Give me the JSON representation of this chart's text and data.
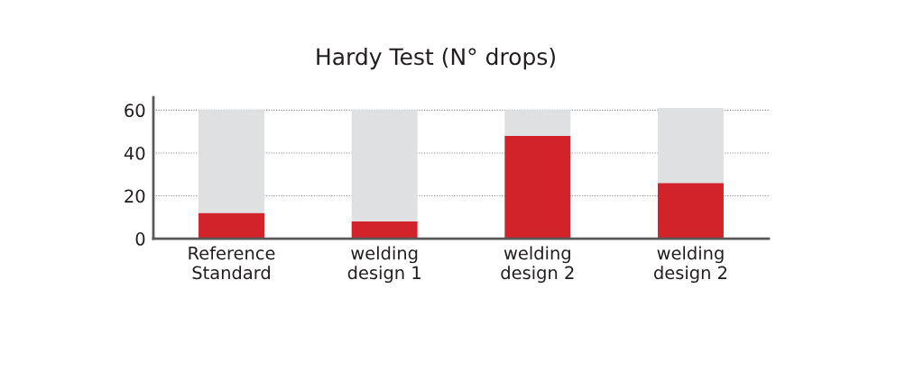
{
  "chart_data": {
    "type": "bar",
    "title": "Hardy Test (N° drops)",
    "categories": [
      "Reference\nStandard",
      "welding\ndesign 1",
      "welding\ndesign 2",
      "welding\ndesign 2"
    ],
    "stacked": true,
    "series": [
      {
        "color": "#d2232a",
        "values": [
          12,
          8,
          48,
          26
        ]
      },
      {
        "color": "#dfe0e2",
        "values": [
          48,
          52,
          12,
          35
        ]
      }
    ],
    "ylim": [
      0,
      66
    ],
    "yticks": [
      0,
      20,
      40,
      60
    ],
    "grid": "y"
  }
}
